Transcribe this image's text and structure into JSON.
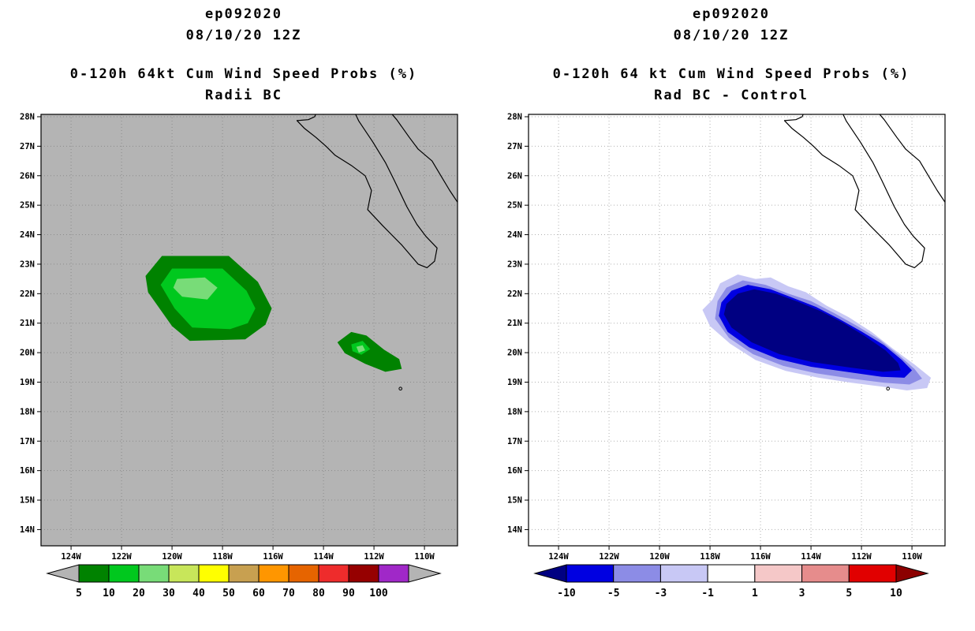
{
  "page": {
    "background": "#ffffff"
  },
  "geo": {
    "coastlines": [
      [
        [
          -114.2,
          28.3
        ],
        [
          -114.35,
          28.0
        ],
        [
          -114.6,
          27.9
        ],
        [
          -115.05,
          27.87
        ],
        [
          -114.75,
          27.6
        ],
        [
          -114.3,
          27.3
        ],
        [
          -113.9,
          27.0
        ],
        [
          -113.55,
          26.7
        ],
        [
          -112.9,
          26.35
        ],
        [
          -112.35,
          26.0
        ],
        [
          -112.1,
          25.5
        ],
        [
          -112.25,
          24.85
        ],
        [
          -111.65,
          24.3
        ],
        [
          -110.9,
          23.65
        ],
        [
          -110.25,
          23.0
        ],
        [
          -109.9,
          22.88
        ],
        [
          -109.6,
          23.1
        ],
        [
          -109.5,
          23.55
        ],
        [
          -109.95,
          23.95
        ],
        [
          -110.3,
          24.35
        ],
        [
          -110.7,
          24.95
        ],
        [
          -111.2,
          25.85
        ],
        [
          -111.55,
          26.45
        ],
        [
          -112.05,
          27.15
        ],
        [
          -112.6,
          27.85
        ],
        [
          -112.85,
          28.3
        ]
      ],
      [
        [
          -111.5,
          28.3
        ],
        [
          -111.1,
          27.9
        ],
        [
          -110.6,
          27.3
        ],
        [
          -110.25,
          26.9
        ],
        [
          -109.7,
          26.5
        ],
        [
          -109.35,
          26.0
        ],
        [
          -109.0,
          25.5
        ],
        [
          -108.65,
          25.05
        ],
        [
          -108.5,
          24.7
        ]
      ]
    ],
    "islands": [
      [
        -110.95,
        18.78
      ]
    ]
  },
  "chart_data": [
    {
      "type": "heatmap",
      "storm_id": "ep092020",
      "init_time": "08/10/20 12Z",
      "title": "0-120h 64kt Cum Wind Speed Probs (%)",
      "subtitle": "Radii BC",
      "xlabel": "",
      "ylabel": "",
      "map": {
        "background": "#b4b4b4",
        "grid_color": "#8c8c8c",
        "grid": true,
        "lon_min": -125.19,
        "lon_max": -108.69,
        "lat_min": 13.45,
        "lat_max": 28.08,
        "lat_tick_vals": [
          28,
          27,
          26,
          25,
          24,
          23,
          22,
          21,
          20,
          19,
          18,
          17,
          16,
          15,
          14
        ],
        "lat_tick_labels": [
          "28N",
          "27N",
          "26N",
          "25N",
          "24N",
          "23N",
          "22N",
          "21N",
          "20N",
          "19N",
          "18N",
          "17N",
          "16N",
          "15N",
          "14N"
        ],
        "lon_tick_vals": [
          -124,
          -122,
          -120,
          -118,
          -116,
          -114,
          -112,
          -110
        ],
        "lon_tick_labels": [
          "124W",
          "122W",
          "120W",
          "118W",
          "116W",
          "114W",
          "112W",
          "110W"
        ]
      },
      "contours": [
        {
          "level": 5,
          "color": "#008200",
          "points": [
            [
              -120.4,
              23.28
            ],
            [
              -117.75,
              23.28
            ],
            [
              -116.6,
              22.4
            ],
            [
              -116.05,
              21.5
            ],
            [
              -116.3,
              20.95
            ],
            [
              -117.1,
              20.45
            ],
            [
              -119.3,
              20.4
            ],
            [
              -120.0,
              20.9
            ],
            [
              -120.95,
              22.05
            ],
            [
              -121.05,
              22.6
            ]
          ]
        },
        {
          "level": 10,
          "color": "#00c81e",
          "points": [
            [
              -120.0,
              22.85
            ],
            [
              -118.0,
              22.85
            ],
            [
              -117.05,
              22.1
            ],
            [
              -116.7,
              21.5
            ],
            [
              -117.0,
              21.0
            ],
            [
              -117.7,
              20.8
            ],
            [
              -119.2,
              20.85
            ],
            [
              -119.9,
              21.5
            ],
            [
              -120.45,
              22.3
            ]
          ]
        },
        {
          "level": 20,
          "color": "#78dc78",
          "points": [
            [
              -119.8,
              22.5
            ],
            [
              -118.7,
              22.55
            ],
            [
              -118.2,
              22.2
            ],
            [
              -118.6,
              21.8
            ],
            [
              -119.6,
              21.9
            ],
            [
              -119.95,
              22.2
            ]
          ]
        },
        {
          "level": 5,
          "color": "#008200",
          "points": [
            [
              -113.45,
              20.35
            ],
            [
              -112.9,
              20.7
            ],
            [
              -112.3,
              20.58
            ],
            [
              -111.6,
              20.1
            ],
            [
              -111.0,
              19.78
            ],
            [
              -110.9,
              19.45
            ],
            [
              -111.55,
              19.35
            ],
            [
              -112.35,
              19.62
            ],
            [
              -113.15,
              19.98
            ]
          ]
        },
        {
          "level": 10,
          "color": "#00c81e",
          "points": [
            [
              -112.9,
              20.28
            ],
            [
              -112.45,
              20.4
            ],
            [
              -112.15,
              20.12
            ],
            [
              -112.5,
              19.93
            ],
            [
              -112.85,
              20.05
            ]
          ]
        },
        {
          "level": 20,
          "color": "#78dc78",
          "points": [
            [
              -112.7,
              20.2
            ],
            [
              -112.45,
              20.25
            ],
            [
              -112.35,
              20.08
            ],
            [
              -112.6,
              20.0
            ]
          ]
        }
      ],
      "colorbar": {
        "labels": [
          "5",
          "10",
          "20",
          "30",
          "40",
          "50",
          "60",
          "70",
          "80",
          "90",
          "100"
        ],
        "cell_colors": [
          "#008200",
          "#00c81e",
          "#78dc78",
          "#c8e65a",
          "#ffff00",
          "#c8a050",
          "#ff9600",
          "#e66400",
          "#ee2c2c",
          "#960000",
          "#a028c8"
        ],
        "left_arrow_color": "#b4b4b4",
        "right_arrow_color": "#b4b4b4"
      }
    },
    {
      "type": "heatmap",
      "storm_id": "ep092020",
      "init_time": "08/10/20 12Z",
      "title": "0-120h 64 kt Cum Wind Speed Probs (%)",
      "subtitle": "Rad BC - Control",
      "xlabel": "",
      "ylabel": "",
      "map": {
        "background": "#ffffff",
        "grid_color": "#b0b0b0",
        "grid": true,
        "lon_min": -125.19,
        "lon_max": -108.69,
        "lat_min": 13.45,
        "lat_max": 28.08,
        "lat_tick_vals": [
          28,
          27,
          26,
          25,
          24,
          23,
          22,
          21,
          20,
          19,
          18,
          17,
          16,
          15,
          14
        ],
        "lat_tick_labels": [
          "28N",
          "27N",
          "26N",
          "25N",
          "24N",
          "23N",
          "22N",
          "21N",
          "20N",
          "19N",
          "18N",
          "17N",
          "16N",
          "15N",
          "14N"
        ],
        "lon_tick_vals": [
          -124,
          -122,
          -120,
          -118,
          -116,
          -114,
          -112,
          -110
        ],
        "lon_tick_labels": [
          "124W",
          "122W",
          "120W",
          "118W",
          "116W",
          "114W",
          "112W",
          "110W"
        ]
      },
      "contours": [
        {
          "level": -1,
          "color": "#c8c8f5",
          "points": [
            [
              -117.9,
              21.8
            ],
            [
              -117.6,
              22.35
            ],
            [
              -116.9,
              22.65
            ],
            [
              -116.2,
              22.5
            ],
            [
              -115.6,
              22.55
            ],
            [
              -114.9,
              22.25
            ],
            [
              -114.2,
              22.05
            ],
            [
              -113.4,
              21.6
            ],
            [
              -112.5,
              21.2
            ],
            [
              -111.6,
              20.7
            ],
            [
              -110.7,
              20.1
            ],
            [
              -109.9,
              19.6
            ],
            [
              -109.25,
              19.15
            ],
            [
              -109.4,
              18.8
            ],
            [
              -110.2,
              18.72
            ],
            [
              -111.2,
              18.85
            ],
            [
              -112.4,
              18.98
            ],
            [
              -113.7,
              19.15
            ],
            [
              -115.0,
              19.38
            ],
            [
              -116.2,
              19.75
            ],
            [
              -117.2,
              20.3
            ],
            [
              -118.0,
              20.9
            ],
            [
              -118.3,
              21.45
            ]
          ]
        },
        {
          "level": -3,
          "color": "#8c8ce6",
          "points": [
            [
              -117.7,
              21.75
            ],
            [
              -117.35,
              22.2
            ],
            [
              -116.7,
              22.45
            ],
            [
              -115.8,
              22.3
            ],
            [
              -114.9,
              22.0
            ],
            [
              -114.0,
              21.75
            ],
            [
              -113.1,
              21.35
            ],
            [
              -112.2,
              20.92
            ],
            [
              -111.3,
              20.45
            ],
            [
              -110.5,
              19.9
            ],
            [
              -109.9,
              19.45
            ],
            [
              -109.6,
              19.12
            ],
            [
              -110.1,
              18.92
            ],
            [
              -111.1,
              18.98
            ],
            [
              -112.4,
              19.12
            ],
            [
              -113.8,
              19.3
            ],
            [
              -115.1,
              19.55
            ],
            [
              -116.3,
              19.95
            ],
            [
              -117.25,
              20.5
            ],
            [
              -117.8,
              21.15
            ]
          ]
        },
        {
          "level": -5,
          "color": "#0000e1",
          "points": [
            [
              -117.55,
              21.7
            ],
            [
              -117.15,
              22.1
            ],
            [
              -116.5,
              22.3
            ],
            [
              -115.6,
              22.15
            ],
            [
              -114.7,
              21.85
            ],
            [
              -113.8,
              21.55
            ],
            [
              -112.9,
              21.15
            ],
            [
              -112.0,
              20.72
            ],
            [
              -111.1,
              20.25
            ],
            [
              -110.4,
              19.75
            ],
            [
              -110.0,
              19.4
            ],
            [
              -110.3,
              19.15
            ],
            [
              -111.2,
              19.18
            ],
            [
              -112.6,
              19.35
            ],
            [
              -114.0,
              19.52
            ],
            [
              -115.3,
              19.78
            ],
            [
              -116.45,
              20.18
            ],
            [
              -117.3,
              20.7
            ],
            [
              -117.65,
              21.25
            ]
          ]
        },
        {
          "level": -10,
          "color": "#000082",
          "points": [
            [
              -117.35,
              21.65
            ],
            [
              -116.9,
              22.0
            ],
            [
              -116.25,
              22.15
            ],
            [
              -115.4,
              22.0
            ],
            [
              -114.5,
              21.72
            ],
            [
              -113.6,
              21.4
            ],
            [
              -112.7,
              21.0
            ],
            [
              -111.85,
              20.55
            ],
            [
              -111.05,
              20.08
            ],
            [
              -110.55,
              19.65
            ],
            [
              -110.45,
              19.4
            ],
            [
              -111.15,
              19.35
            ],
            [
              -112.5,
              19.5
            ],
            [
              -113.95,
              19.68
            ],
            [
              -115.25,
              19.95
            ],
            [
              -116.35,
              20.35
            ],
            [
              -117.15,
              20.85
            ],
            [
              -117.45,
              21.3
            ]
          ]
        }
      ],
      "colorbar": {
        "labels": [
          "-10",
          "-5",
          "-3",
          "-1",
          "1",
          "3",
          "5",
          "10"
        ],
        "cell_colors": [
          "#0000e1",
          "#8c8ce6",
          "#c8c8f5",
          "#ffffff",
          "#f5c8c8",
          "#e68c8c",
          "#e10000"
        ],
        "left_arrow_color": "#000082",
        "right_arrow_color": "#8c0000"
      }
    }
  ]
}
